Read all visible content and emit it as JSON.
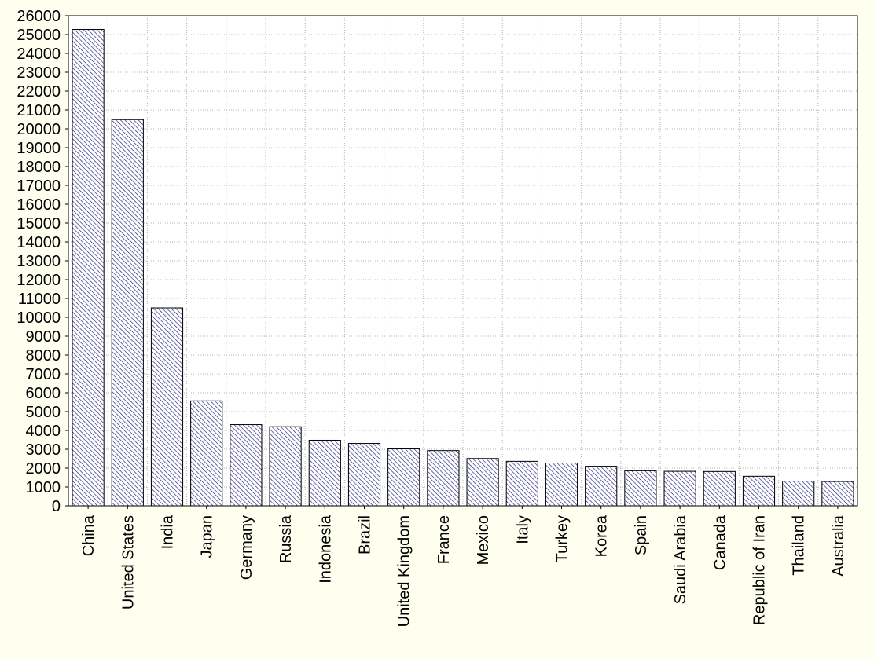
{
  "chart_data": {
    "type": "bar",
    "title": "",
    "xlabel": "",
    "ylabel": "",
    "categories": [
      "China",
      "United States",
      "India",
      "Japan",
      "Germany",
      "Russia",
      "Indonesia",
      "Brazil",
      "United Kingdom",
      "France",
      "Mexico",
      "Italy",
      "Turkey",
      "Korea",
      "Spain",
      "Saudi Arabia",
      "Canada",
      "Republic of Iran",
      "Thailand",
      "Australia"
    ],
    "values": [
      25270,
      20490,
      10500,
      5570,
      4310,
      4200,
      3480,
      3310,
      3020,
      2930,
      2510,
      2360,
      2270,
      2100,
      1860,
      1830,
      1820,
      1570,
      1310,
      1290
    ],
    "ylim": [
      0,
      26000
    ],
    "yticks": [
      "0",
      "1000",
      "2000",
      "3000",
      "4000",
      "5000",
      "6000",
      "7000",
      "8000",
      "9000",
      "10000",
      "11000",
      "12000",
      "13000",
      "14000",
      "15000",
      "16000",
      "17000",
      "18000",
      "19000",
      "20000",
      "21000",
      "22000",
      "23000",
      "24000",
      "25000",
      "26000"
    ],
    "grid": true,
    "legend": "none",
    "colors": {
      "background": "#fffff0",
      "plot_background": "#ffffff",
      "bar_stroke": "#000000",
      "bar_hatch": "#1c1c7a",
      "grid": "#b4b4b4"
    }
  }
}
